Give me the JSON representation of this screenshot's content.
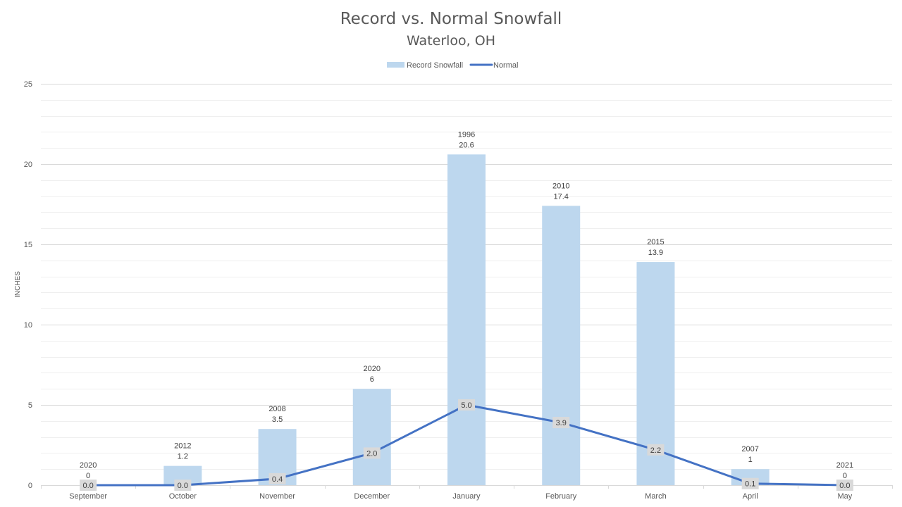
{
  "chart_data": {
    "type": "bar",
    "title": "Record vs. Normal Snowfall",
    "subtitle": "Waterloo, OH",
    "xlabel": "",
    "ylabel": "INCHES",
    "ylim": [
      0,
      25
    ],
    "yticks": [
      0,
      5,
      10,
      15,
      20,
      25
    ],
    "grid": true,
    "legend_placement": "top-center",
    "categories": [
      "September",
      "October",
      "November",
      "December",
      "January",
      "February",
      "March",
      "April",
      "May"
    ],
    "series": [
      {
        "name": "Record Snowfall",
        "type": "bar",
        "color": "#bdd7ee",
        "values": [
          0,
          1.2,
          3.5,
          6,
          20.6,
          17.4,
          13.9,
          1,
          0
        ],
        "year_labels": [
          "2020",
          "2012",
          "2008",
          "2020",
          "1996",
          "2010",
          "2015",
          "2007",
          "2021"
        ],
        "value_labels": [
          "0",
          "1.2",
          "3.5",
          "6",
          "20.6",
          "17.4",
          "13.9",
          "1",
          "0"
        ]
      },
      {
        "name": "Normal",
        "type": "line",
        "color": "#4472c4",
        "values": [
          0.0,
          0.0,
          0.4,
          2.0,
          5.0,
          3.9,
          2.2,
          0.1,
          0.0
        ],
        "value_labels": [
          "0.0",
          "0.0",
          "0.4",
          "2.0",
          "5.0",
          "3.9",
          "2.2",
          "0.1",
          "0.0"
        ]
      }
    ]
  }
}
